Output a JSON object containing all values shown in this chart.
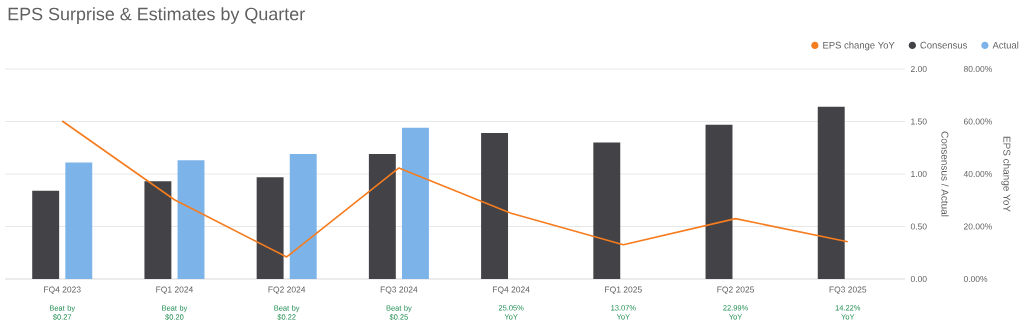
{
  "chart_data": {
    "type": "bar",
    "title": "EPS Surprise & Estimates by Quarter",
    "categories": [
      "FQ4 2023",
      "FQ1 2024",
      "FQ2 2024",
      "FQ3 2024",
      "FQ4 2024",
      "FQ1 2025",
      "FQ2 2025",
      "FQ3 2025"
    ],
    "series": [
      {
        "name": "EPS change YoY",
        "type": "line",
        "axis": "y2",
        "color": "#f57c1f",
        "values": [
          60.2,
          30.2,
          8.4,
          42.3,
          25.05,
          13.07,
          22.99,
          14.22
        ]
      },
      {
        "name": "Consensus",
        "color": "#434246",
        "values": [
          0.84,
          0.93,
          0.97,
          1.19,
          1.39,
          1.3,
          1.47,
          1.64
        ]
      },
      {
        "name": "Actual",
        "color": "#7cb4ea",
        "values": [
          1.11,
          1.13,
          1.19,
          1.44,
          null,
          null,
          null,
          null
        ]
      }
    ],
    "ylabel": "Consensus / Actual",
    "y2label": "EPS change YoY",
    "ylim": [
      0,
      2
    ],
    "yticks": [
      {
        "value": 0,
        "label": "0.00"
      },
      {
        "value": 0.5,
        "label": "0.50"
      },
      {
        "value": 1,
        "label": "1.00"
      },
      {
        "value": 1.5,
        "label": "1.50"
      },
      {
        "value": 2,
        "label": "2.00"
      }
    ],
    "y2lim": [
      0,
      80
    ],
    "y2ticks": [
      {
        "value": 0,
        "label": "0.00%"
      },
      {
        "value": 20,
        "label": "20.00%"
      },
      {
        "value": 40,
        "label": "40.00%"
      },
      {
        "value": 60,
        "label": "60.00%"
      },
      {
        "value": 80,
        "label": "80.00%"
      }
    ],
    "grid": "y",
    "legend": "top right",
    "annotations": [
      "Beat by $0.27",
      "Beat by $0.20",
      "Beat by $0.22",
      "Beat by $0.25",
      "25.05% YoY",
      "13.07% YoY",
      "22.99% YoY",
      "14.22% YoY"
    ]
  }
}
